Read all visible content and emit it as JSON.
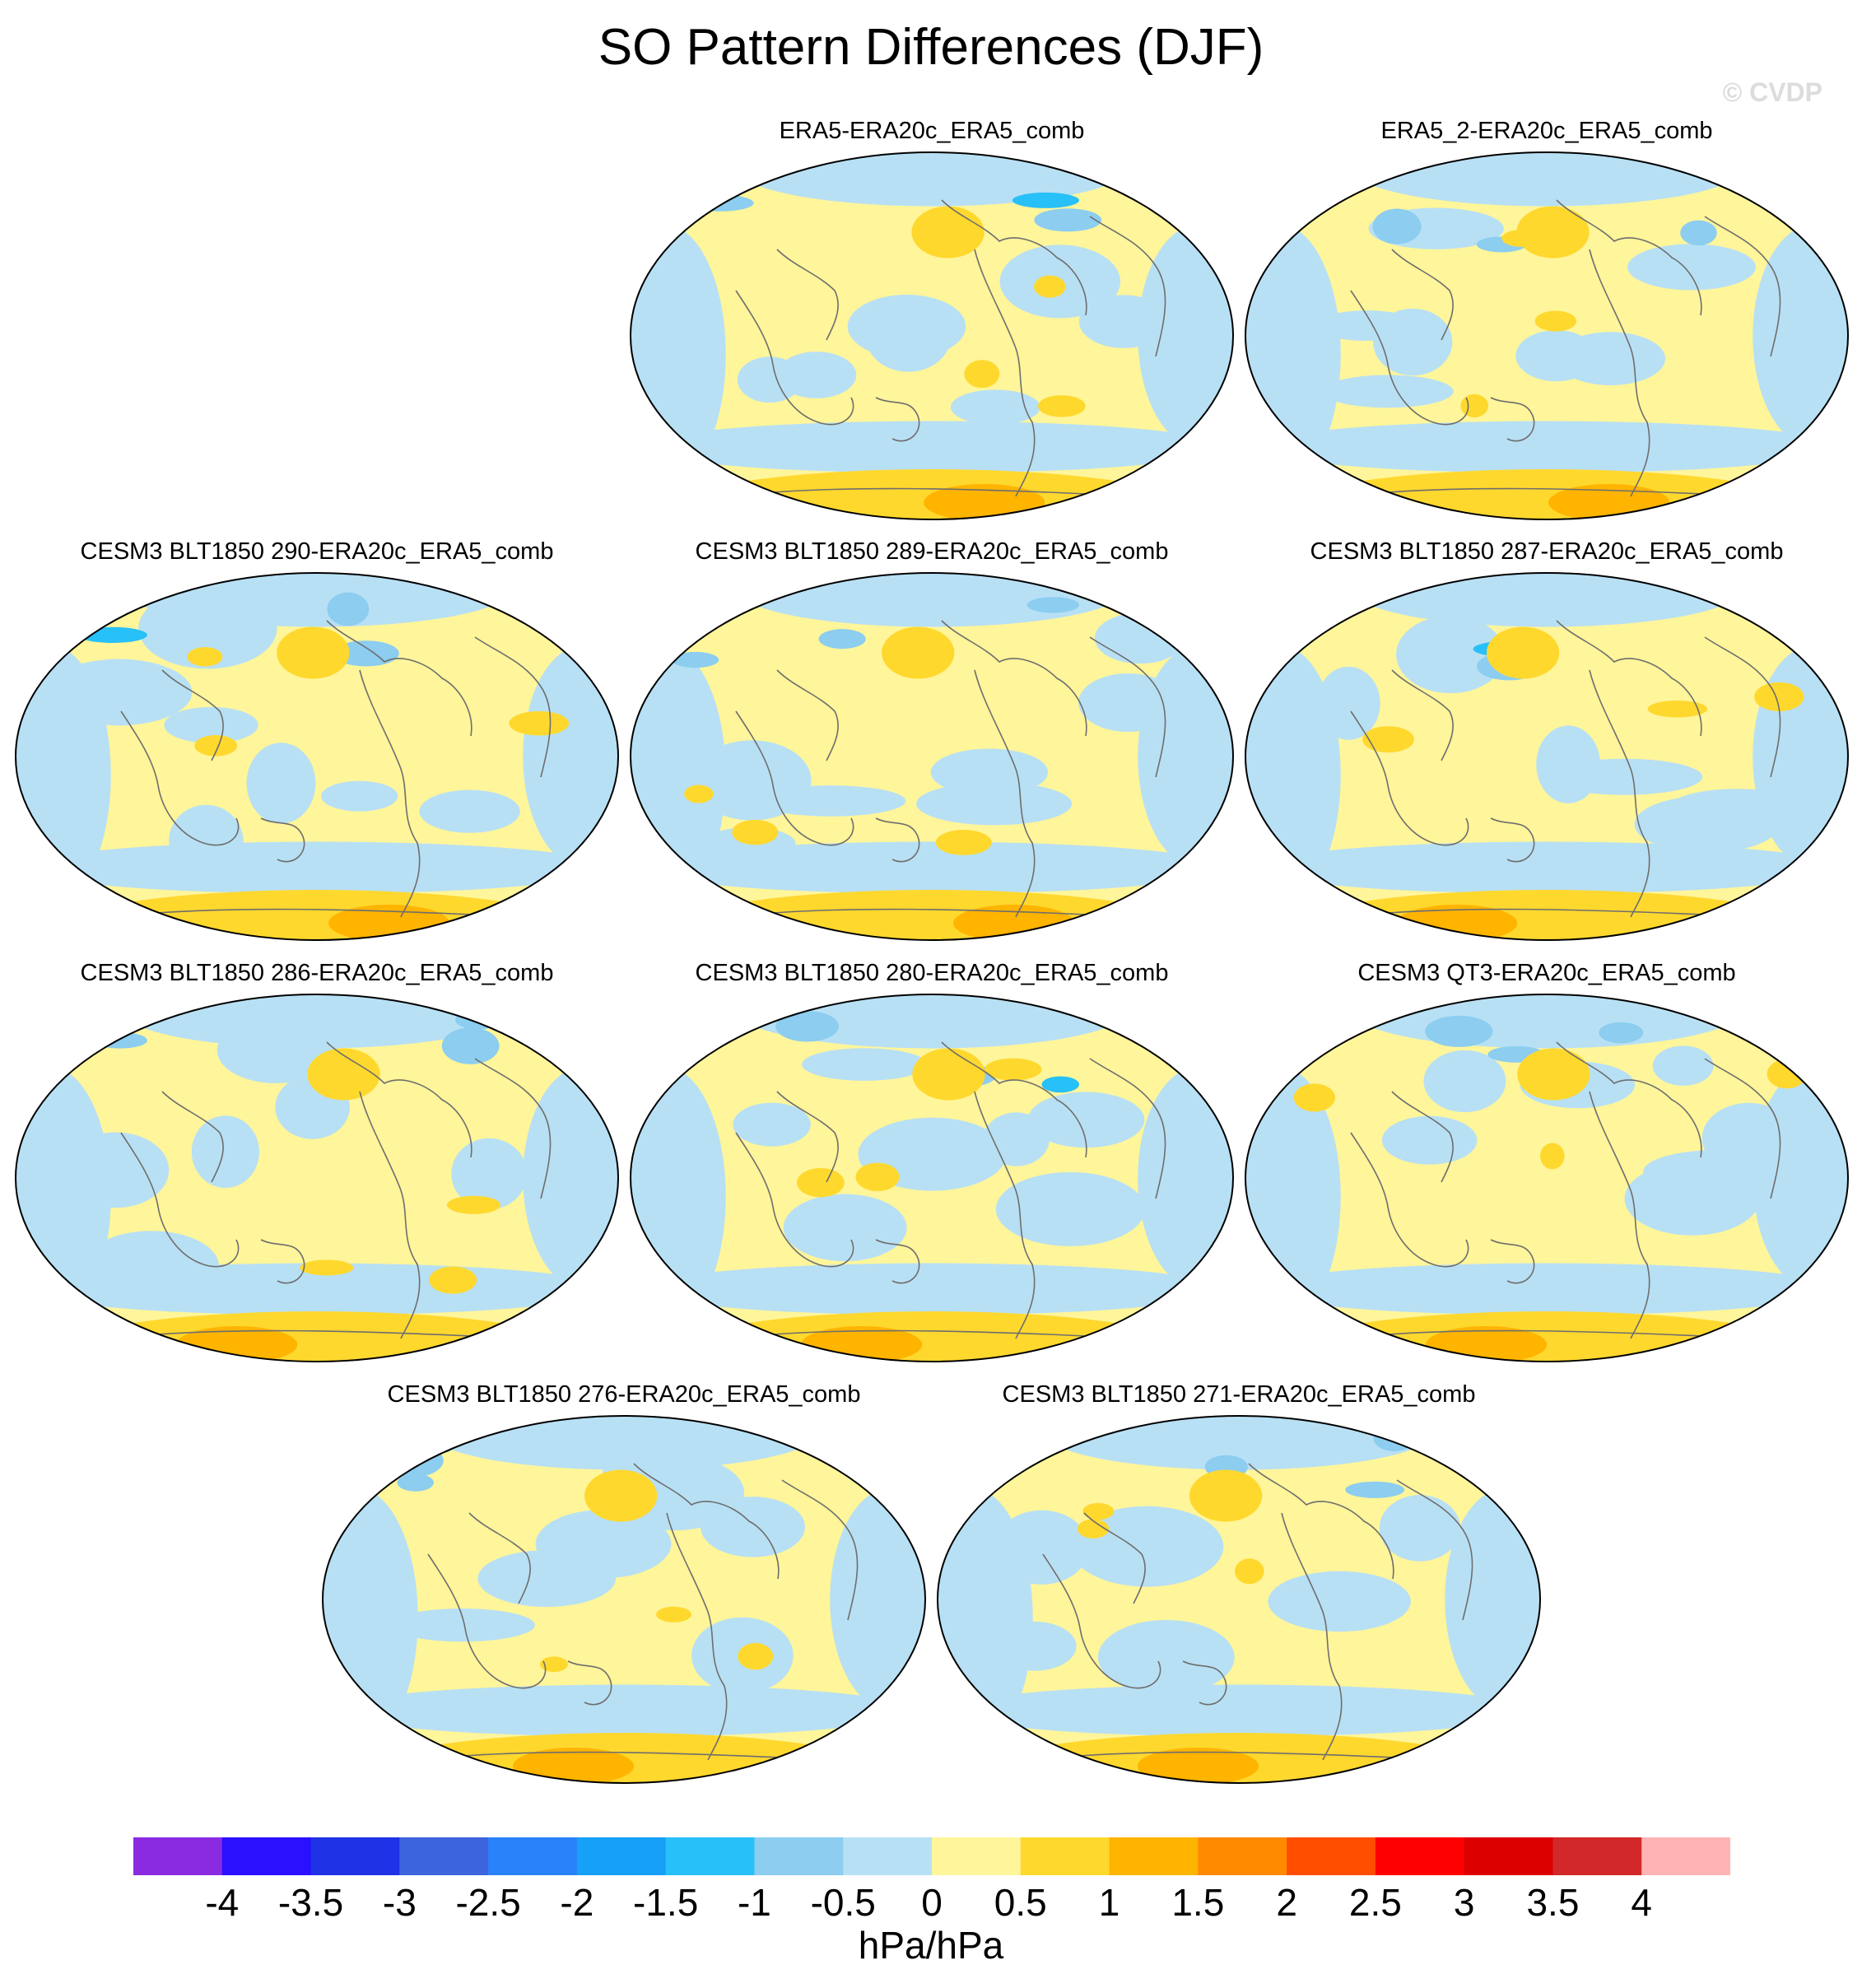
{
  "title": "SO Pattern Differences (DJF)",
  "watermark": "© CVDP",
  "colorbar": {
    "units": "hPa/hPa",
    "levels": [
      "-4",
      "-3.5",
      "-3",
      "-2.5",
      "-2",
      "-1.5",
      "-1",
      "-0.5",
      "0",
      "0.5",
      "1",
      "1.5",
      "2",
      "2.5",
      "3",
      "3.5",
      "4"
    ],
    "colors": [
      "#8a2be2",
      "#2a10ff",
      "#1f32e6",
      "#3c64dc",
      "#2a82fa",
      "#16a0f8",
      "#28c0f8",
      "#8ccdf0",
      "#b8e0f4",
      "#fff59a",
      "#ffd82e",
      "#ffb400",
      "#ff8a00",
      "#ff4e00",
      "#ff0000",
      "#dc0000",
      "#d2282a",
      "#ffb4b4"
    ]
  },
  "chart_data": {
    "type": "map",
    "projection": "Robinson (Pacific-centered)",
    "variable": "SO pattern difference",
    "season": "DJF",
    "panels": [
      {
        "title": "ERA5-ERA20c_ERA5_comb"
      },
      {
        "title": "ERA5_2-ERA20c_ERA5_comb"
      },
      {
        "title": "CESM3 BLT1850 290-ERA20c_ERA5_comb"
      },
      {
        "title": "CESM3 BLT1850 289-ERA20c_ERA5_comb"
      },
      {
        "title": "CESM3 BLT1850 287-ERA20c_ERA5_comb"
      },
      {
        "title": "CESM3 BLT1850 286-ERA20c_ERA5_comb"
      },
      {
        "title": "CESM3 BLT1850 280-ERA20c_ERA5_comb"
      },
      {
        "title": "CESM3 QT3-ERA20c_ERA5_comb"
      },
      {
        "title": "CESM3 BLT1850 276-ERA20c_ERA5_comb"
      },
      {
        "title": "CESM3 BLT1850 271-ERA20c_ERA5_comb"
      }
    ]
  }
}
